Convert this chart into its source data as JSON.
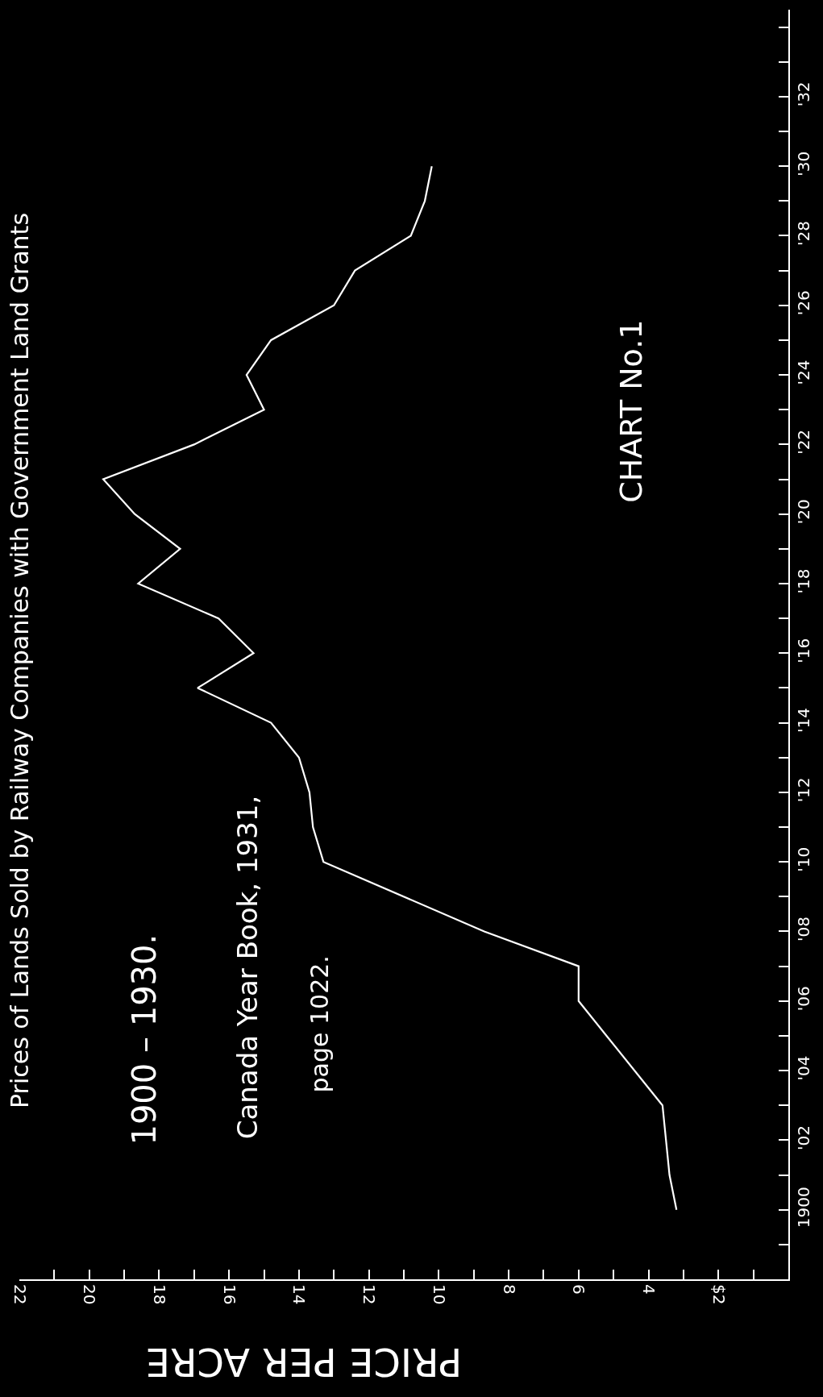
{
  "chart_data": {
    "type": "line",
    "orientation": "horizontal",
    "title": "Prices of Lands Sold by Railway Companies with Government Land Grants",
    "subtitle": "1900 – 1930.",
    "xlabel": "PRICE PER ACRE",
    "annotations": [
      "Canada Year Book, 1931,",
      "page 1022.",
      "CHART No.1"
    ],
    "x": [
      1900,
      1901,
      1902,
      1903,
      1905,
      1906,
      1907,
      1908,
      1910,
      1911,
      1912,
      1913,
      1914,
      1915,
      1916,
      1917,
      1918,
      1919,
      1920,
      1921,
      1922,
      1923,
      1924,
      1925,
      1926,
      1927,
      1928,
      1929,
      1930
    ],
    "series": [
      {
        "color": "#ffffff",
        "values": [
          3.2,
          3.4,
          3.5,
          3.6,
          5.2,
          6.0,
          6.0,
          8.7,
          13.3,
          13.6,
          13.7,
          14.0,
          14.8,
          16.9,
          15.3,
          16.3,
          18.6,
          17.4,
          18.7,
          19.6,
          17.0,
          15.0,
          15.5,
          14.8,
          13.0,
          12.4,
          10.8,
          10.4,
          10.2
        ]
      }
    ],
    "xlim": [
      22,
      0
    ],
    "xticks": [
      22,
      {
        "value": 21,
        "label": null
      },
      20,
      {
        "value": 19,
        "label": null
      },
      18,
      {
        "value": 17,
        "label": null
      },
      16,
      {
        "value": 15,
        "label": null
      },
      14,
      {
        "value": 13,
        "label": null
      },
      12,
      {
        "value": 11,
        "label": null
      },
      10,
      {
        "value": 9,
        "label": null
      },
      8,
      {
        "value": 7,
        "label": null
      },
      6,
      {
        "value": 5,
        "label": null
      },
      4,
      {
        "value": 3,
        "label": null
      },
      {
        "value": 2,
        "label": "$2"
      },
      {
        "value": 1,
        "label": null
      }
    ],
    "ylim": [
      1898,
      1934.5
    ],
    "yticks": [
      {
        "value": 1899,
        "label": null
      },
      1900,
      {
        "value": 1901,
        "label": null
      },
      {
        "value": 1902,
        "label": "'02"
      },
      {
        "value": 1903,
        "label": null
      },
      {
        "value": 1904,
        "label": "'04"
      },
      {
        "value": 1905,
        "label": null
      },
      {
        "value": 1906,
        "label": "'06"
      },
      {
        "value": 1907,
        "label": null
      },
      {
        "value": 1908,
        "label": "'08"
      },
      {
        "value": 1909,
        "label": null
      },
      {
        "value": 1910,
        "label": "'10"
      },
      {
        "value": 1911,
        "label": null
      },
      {
        "value": 1912,
        "label": "'12"
      },
      {
        "value": 1913,
        "label": null
      },
      {
        "value": 1914,
        "label": "'14"
      },
      {
        "value": 1915,
        "label": null
      },
      {
        "value": 1916,
        "label": "'16"
      },
      {
        "value": 1917,
        "label": null
      },
      {
        "value": 1918,
        "label": "'18"
      },
      {
        "value": 1919,
        "label": null
      },
      {
        "value": 1920,
        "label": "'20"
      },
      {
        "value": 1921,
        "label": null
      },
      {
        "value": 1922,
        "label": "'22"
      },
      {
        "value": 1923,
        "label": null
      },
      {
        "value": 1924,
        "label": "'24"
      },
      {
        "value": 1925,
        "label": null
      },
      {
        "value": 1926,
        "label": "'26"
      },
      {
        "value": 1927,
        "label": null
      },
      {
        "value": 1928,
        "label": "'28"
      },
      {
        "value": 1929,
        "label": null
      },
      {
        "value": 1930,
        "label": "'30"
      },
      {
        "value": 1931,
        "label": null
      },
      {
        "value": 1932,
        "label": "'32"
      },
      {
        "value": 1933,
        "label": null
      },
      {
        "value": 1934,
        "label": null
      }
    ],
    "grid": false,
    "marker": "none",
    "line_style": "solid"
  }
}
